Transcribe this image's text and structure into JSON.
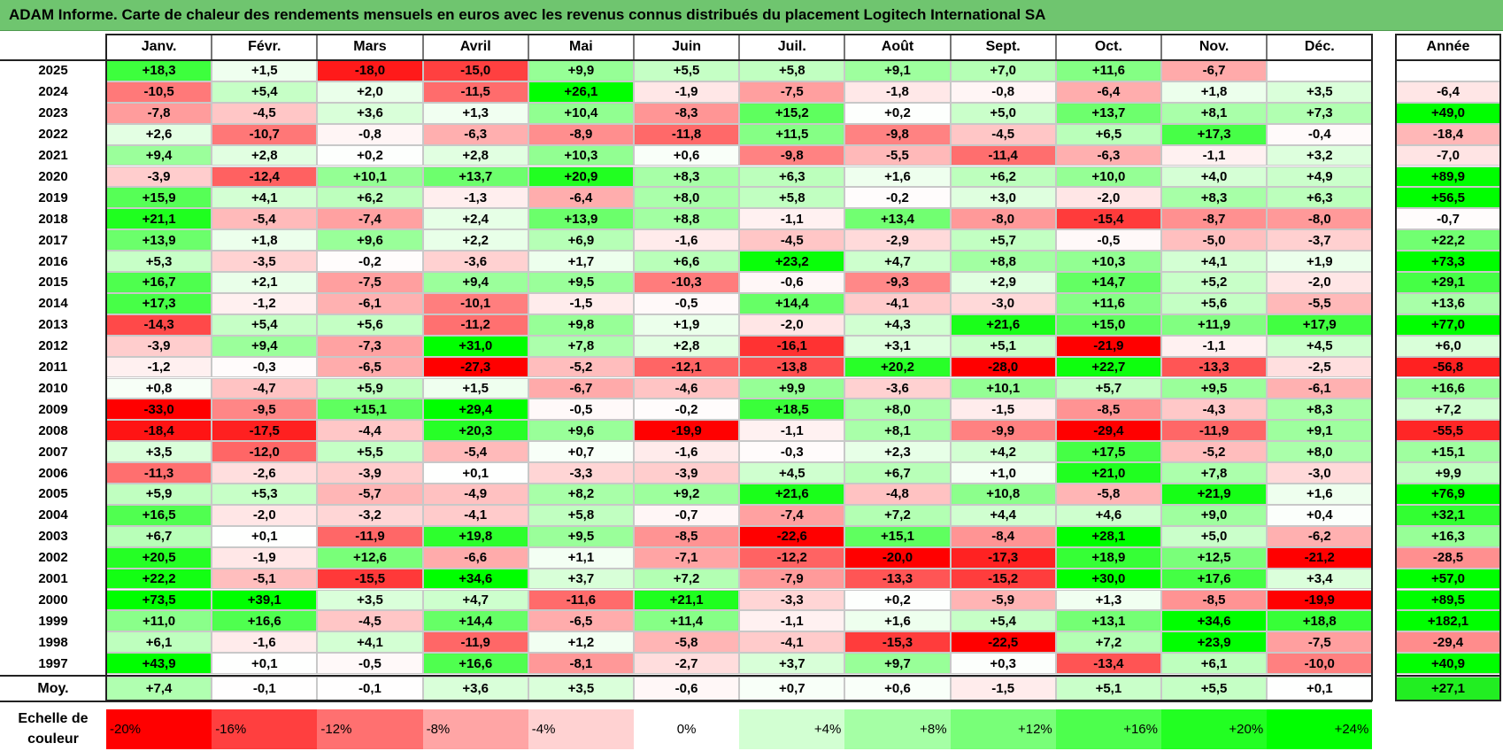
{
  "title": "ADAM Informe. Carte de chaleur des rendements mensuels en euros avec les revenus connus distribués du placement Logitech International SA",
  "chart_data": {
    "type": "heatmap",
    "months": [
      "Janv.",
      "Févr.",
      "Mars",
      "Avril",
      "Mai",
      "Juin",
      "Juil.",
      "Août",
      "Sept.",
      "Oct.",
      "Nov.",
      "Déc."
    ],
    "annual_header": "Année",
    "rows": [
      {
        "year": "2025",
        "values": [
          "+18,3",
          "+1,5",
          "-18,0",
          "-15,0",
          "+9,9",
          "+5,5",
          "+5,8",
          "+9,1",
          "+7,0",
          "+11,6",
          "-6,7",
          ""
        ],
        "annual": ""
      },
      {
        "year": "2024",
        "values": [
          "-10,5",
          "+5,4",
          "+2,0",
          "-11,5",
          "+26,1",
          "-1,9",
          "-7,5",
          "-1,8",
          "-0,8",
          "-6,4",
          "+1,8",
          "+3,5"
        ],
        "annual": "-6,4"
      },
      {
        "year": "2023",
        "values": [
          "-7,8",
          "-4,5",
          "+3,6",
          "+1,3",
          "+10,4",
          "-8,3",
          "+15,2",
          "+0,2",
          "+5,0",
          "+13,7",
          "+8,1",
          "+7,3"
        ],
        "annual": "+49,0"
      },
      {
        "year": "2022",
        "values": [
          "+2,6",
          "-10,7",
          "-0,8",
          "-6,3",
          "-8,9",
          "-11,8",
          "+11,5",
          "-9,8",
          "-4,5",
          "+6,5",
          "+17,3",
          "-0,4"
        ],
        "annual": "-18,4"
      },
      {
        "year": "2021",
        "values": [
          "+9,4",
          "+2,8",
          "+0,2",
          "+2,8",
          "+10,3",
          "+0,6",
          "-9,8",
          "-5,5",
          "-11,4",
          "-6,3",
          "-1,1",
          "+3,2"
        ],
        "annual": "-7,0"
      },
      {
        "year": "2020",
        "values": [
          "-3,9",
          "-12,4",
          "+10,1",
          "+13,7",
          "+20,9",
          "+8,3",
          "+6,3",
          "+1,6",
          "+6,2",
          "+10,0",
          "+4,0",
          "+4,9"
        ],
        "annual": "+89,9"
      },
      {
        "year": "2019",
        "values": [
          "+15,9",
          "+4,1",
          "+6,2",
          "-1,3",
          "-6,4",
          "+8,0",
          "+5,8",
          "-0,2",
          "+3,0",
          "-2,0",
          "+8,3",
          "+6,3"
        ],
        "annual": "+56,5"
      },
      {
        "year": "2018",
        "values": [
          "+21,1",
          "-5,4",
          "-7,4",
          "+2,4",
          "+13,9",
          "+8,8",
          "-1,1",
          "+13,4",
          "-8,0",
          "-15,4",
          "-8,7",
          "-8,0"
        ],
        "annual": "-0,7"
      },
      {
        "year": "2017",
        "values": [
          "+13,9",
          "+1,8",
          "+9,6",
          "+2,2",
          "+6,9",
          "-1,6",
          "-4,5",
          "-2,9",
          "+5,7",
          "-0,5",
          "-5,0",
          "-3,7"
        ],
        "annual": "+22,2"
      },
      {
        "year": "2016",
        "values": [
          "+5,3",
          "-3,5",
          "-0,2",
          "-3,6",
          "+1,7",
          "+6,6",
          "+23,2",
          "+4,7",
          "+8,8",
          "+10,3",
          "+4,1",
          "+1,9"
        ],
        "annual": "+73,3"
      },
      {
        "year": "2015",
        "values": [
          "+16,7",
          "+2,1",
          "-7,5",
          "+9,4",
          "+9,5",
          "-10,3",
          "-0,6",
          "-9,3",
          "+2,9",
          "+14,7",
          "+5,2",
          "-2,0"
        ],
        "annual": "+29,1"
      },
      {
        "year": "2014",
        "values": [
          "+17,3",
          "-1,2",
          "-6,1",
          "-10,1",
          "-1,5",
          "-0,5",
          "+14,4",
          "-4,1",
          "-3,0",
          "+11,6",
          "+5,6",
          "-5,5"
        ],
        "annual": "+13,6"
      },
      {
        "year": "2013",
        "values": [
          "-14,3",
          "+5,4",
          "+5,6",
          "-11,2",
          "+9,8",
          "+1,9",
          "-2,0",
          "+4,3",
          "+21,6",
          "+15,0",
          "+11,9",
          "+17,9"
        ],
        "annual": "+77,0"
      },
      {
        "year": "2012",
        "values": [
          "-3,9",
          "+9,4",
          "-7,3",
          "+31,0",
          "+7,8",
          "+2,8",
          "-16,1",
          "+3,1",
          "+5,1",
          "-21,9",
          "-1,1",
          "+4,5"
        ],
        "annual": "+6,0"
      },
      {
        "year": "2011",
        "values": [
          "-1,2",
          "-0,3",
          "-6,5",
          "-27,3",
          "-5,2",
          "-12,1",
          "-13,8",
          "+20,2",
          "-28,0",
          "+22,7",
          "-13,3",
          "-2,5"
        ],
        "annual": "-56,8"
      },
      {
        "year": "2010",
        "values": [
          "+0,8",
          "-4,7",
          "+5,9",
          "+1,5",
          "-6,7",
          "-4,6",
          "+9,9",
          "-3,6",
          "+10,1",
          "+5,7",
          "+9,5",
          "-6,1"
        ],
        "annual": "+16,6"
      },
      {
        "year": "2009",
        "values": [
          "-33,0",
          "-9,5",
          "+15,1",
          "+29,4",
          "-0,5",
          "-0,2",
          "+18,5",
          "+8,0",
          "-1,5",
          "-8,5",
          "-4,3",
          "+8,3"
        ],
        "annual": "+7,2"
      },
      {
        "year": "2008",
        "values": [
          "-18,4",
          "-17,5",
          "-4,4",
          "+20,3",
          "+9,6",
          "-19,9",
          "-1,1",
          "+8,1",
          "-9,9",
          "-29,4",
          "-11,9",
          "+9,1"
        ],
        "annual": "-55,5"
      },
      {
        "year": "2007",
        "values": [
          "+3,5",
          "-12,0",
          "+5,5",
          "-5,4",
          "+0,7",
          "-1,6",
          "-0,3",
          "+2,3",
          "+4,2",
          "+17,5",
          "-5,2",
          "+8,0"
        ],
        "annual": "+15,1"
      },
      {
        "year": "2006",
        "values": [
          "-11,3",
          "-2,6",
          "-3,9",
          "+0,1",
          "-3,3",
          "-3,9",
          "+4,5",
          "+6,7",
          "+1,0",
          "+21,0",
          "+7,8",
          "-3,0"
        ],
        "annual": "+9,9"
      },
      {
        "year": "2005",
        "values": [
          "+5,9",
          "+5,3",
          "-5,7",
          "-4,9",
          "+8,2",
          "+9,2",
          "+21,6",
          "-4,8",
          "+10,8",
          "-5,8",
          "+21,9",
          "+1,6"
        ],
        "annual": "+76,9"
      },
      {
        "year": "2004",
        "values": [
          "+16,5",
          "-2,0",
          "-3,2",
          "-4,1",
          "+5,8",
          "-0,7",
          "-7,4",
          "+7,2",
          "+4,4",
          "+4,6",
          "+9,0",
          "+0,4"
        ],
        "annual": "+32,1"
      },
      {
        "year": "2003",
        "values": [
          "+6,7",
          "+0,1",
          "-11,9",
          "+19,8",
          "+9,5",
          "-8,5",
          "-22,6",
          "+15,1",
          "-8,4",
          "+28,1",
          "+5,0",
          "-6,2"
        ],
        "annual": "+16,3"
      },
      {
        "year": "2002",
        "values": [
          "+20,5",
          "-1,9",
          "+12,6",
          "-6,6",
          "+1,1",
          "-7,1",
          "-12,2",
          "-20,0",
          "-17,3",
          "+18,9",
          "+12,5",
          "-21,2"
        ],
        "annual": "-28,5"
      },
      {
        "year": "2001",
        "values": [
          "+22,2",
          "-5,1",
          "-15,5",
          "+34,6",
          "+3,7",
          "+7,2",
          "-7,9",
          "-13,3",
          "-15,2",
          "+30,0",
          "+17,6",
          "+3,4"
        ],
        "annual": "+57,0"
      },
      {
        "year": "2000",
        "values": [
          "+73,5",
          "+39,1",
          "+3,5",
          "+4,7",
          "-11,6",
          "+21,1",
          "-3,3",
          "+0,2",
          "-5,9",
          "+1,3",
          "-8,5",
          "-19,9"
        ],
        "annual": "+89,5"
      },
      {
        "year": "1999",
        "values": [
          "+11,0",
          "+16,6",
          "-4,5",
          "+14,4",
          "-6,5",
          "+11,4",
          "-1,1",
          "+1,6",
          "+5,4",
          "+13,1",
          "+34,6",
          "+18,8"
        ],
        "annual": "+182,1"
      },
      {
        "year": "1998",
        "values": [
          "+6,1",
          "-1,6",
          "+4,1",
          "-11,9",
          "+1,2",
          "-5,8",
          "-4,1",
          "-15,3",
          "-22,5",
          "+7,2",
          "+23,9",
          "-7,5"
        ],
        "annual": "-29,4"
      },
      {
        "year": "1997",
        "values": [
          "+43,9",
          "+0,1",
          "-0,5",
          "+16,6",
          "-8,1",
          "-2,7",
          "+3,7",
          "+9,7",
          "+0,3",
          "-13,4",
          "+6,1",
          "-10,0"
        ],
        "annual": "+40,9"
      }
    ],
    "average": {
      "label": "Moy.",
      "values": [
        "+7,4",
        "-0,1",
        "-0,1",
        "+3,6",
        "+3,5",
        "-0,6",
        "+0,7",
        "+0,6",
        "-1,5",
        "+5,1",
        "+5,5",
        "+0,1"
      ],
      "annual": "+27,1"
    },
    "color_scale": {
      "label": "Echelle de couleur",
      "steps": [
        "-20%",
        "-16%",
        "-12%",
        "-8%",
        "-4%",
        "0%",
        "+4%",
        "+8%",
        "+12%",
        "+16%",
        "+20%",
        "+24%"
      ],
      "colors": [
        "#ff0000",
        "#ff3f3f",
        "#ff7070",
        "#ffa5a5",
        "#ffd2d2",
        "#ffffff",
        "#d2ffd2",
        "#a5ffa5",
        "#78ff78",
        "#4dff4d",
        "#22ff22",
        "#00ff00"
      ]
    }
  }
}
